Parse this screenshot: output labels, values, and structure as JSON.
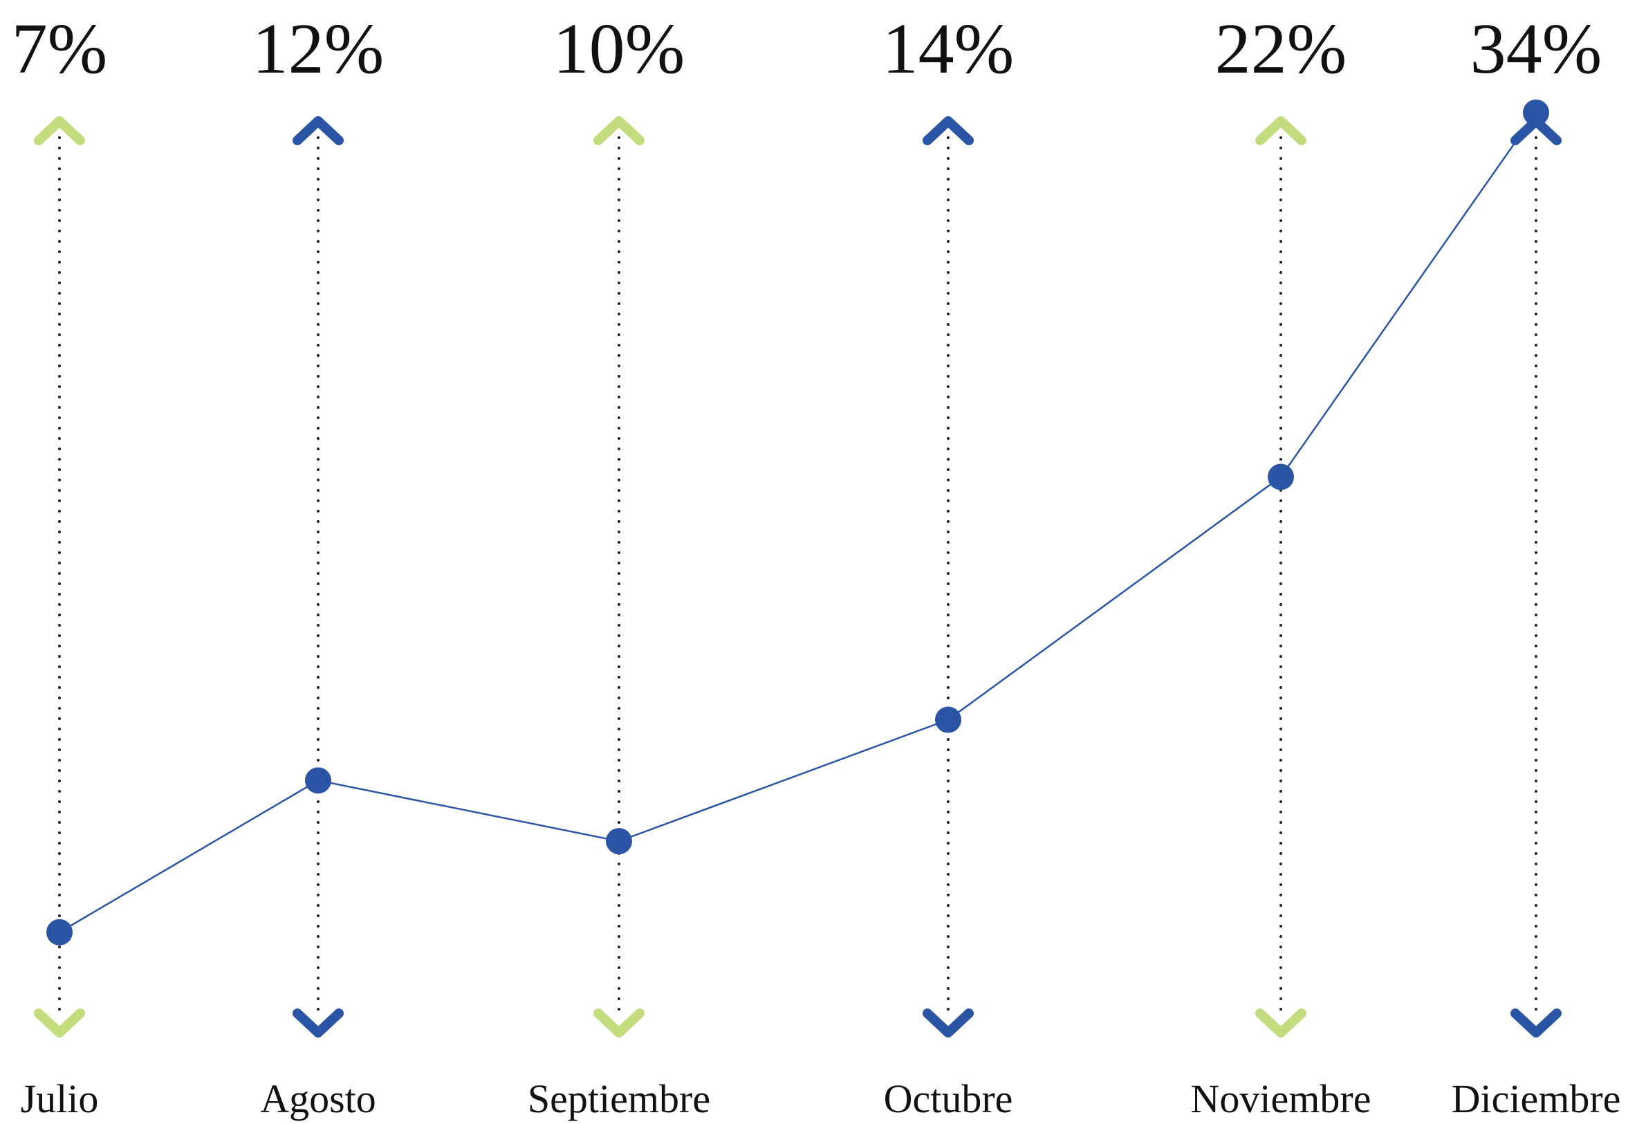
{
  "chart_data": {
    "type": "line",
    "categories": [
      "Julio",
      "Agosto",
      "Septiembre",
      "Octubre",
      "Noviembre",
      "Diciembre"
    ],
    "series": [
      {
        "color": "#2a55a5",
        "values": [
          7,
          12,
          10,
          14,
          22,
          34
        ],
        "value_labels": [
          "7%",
          "12%",
          "10%",
          "14%",
          "22%",
          "34%"
        ]
      }
    ],
    "ylim": [
      0,
      36
    ],
    "arrow_colors": [
      "#c3dc7e",
      "#2a55a5",
      "#c3dc7e",
      "#2a55a5",
      "#c3dc7e",
      "#2a55a5"
    ]
  }
}
